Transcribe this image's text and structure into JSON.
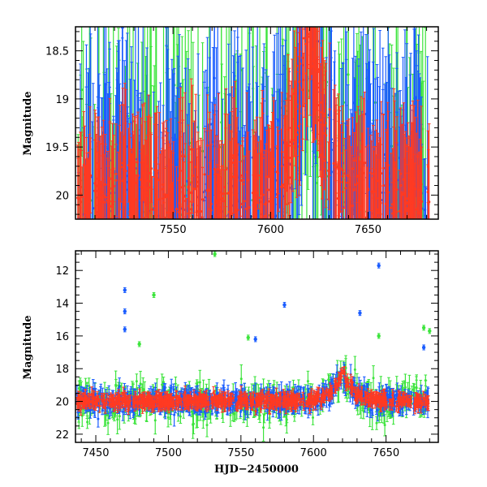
{
  "figure": {
    "series_colors": {
      "red": "#ff3a22",
      "blue": "#1a5cff",
      "green": "#3ce43c"
    }
  },
  "chart_data": [
    {
      "type": "scatter",
      "panel": "top",
      "ylabel": "Magnitude",
      "xlabel": "",
      "xlim": [
        7500,
        7686
      ],
      "ylim": [
        20.25,
        18.25
      ],
      "y_inverted": true,
      "x_ticks": [
        7550,
        7600,
        7650
      ],
      "y_ticks": [
        18.5,
        19,
        19.5,
        20
      ],
      "x_tick_labels": [
        "7550",
        "7600",
        "7650"
      ],
      "y_tick_labels": [
        "18.5",
        "19",
        "19.5",
        "20"
      ],
      "grid": false,
      "legend": "none",
      "series": [
        {
          "color_key": "blue",
          "description_points": [
            [
              7620,
              18.3
            ],
            [
              7612,
              18.7
            ],
            [
              7628,
              18.7
            ],
            [
              7605,
              19.2
            ],
            [
              7635,
              19.2
            ]
          ]
        },
        {
          "color_key": "green",
          "description_points": [
            [
              7622,
              18.35
            ],
            [
              7610,
              18.9
            ],
            [
              7632,
              18.9
            ]
          ]
        },
        {
          "color_key": "red",
          "description_points": [
            [
              7600,
              19.6
            ],
            [
              7610,
              19.0
            ],
            [
              7620,
              18.35
            ],
            [
              7630,
              19.0
            ],
            [
              7640,
              19.6
            ],
            [
              7660,
              19.8
            ]
          ]
        }
      ]
    },
    {
      "type": "scatter",
      "panel": "bottom",
      "ylabel": "Magnitude",
      "xlabel": "HJD−2450000",
      "xlim": [
        7436,
        7686
      ],
      "ylim": [
        22.5,
        10.8
      ],
      "y_inverted": true,
      "x_ticks": [
        7450,
        7500,
        7550,
        7600,
        7650
      ],
      "y_ticks": [
        12,
        14,
        16,
        18,
        20,
        22
      ],
      "x_tick_labels": [
        "7450",
        "7500",
        "7550",
        "7600",
        "7650"
      ],
      "y_tick_labels": [
        "12",
        "14",
        "16",
        "18",
        "20",
        "22"
      ],
      "grid": false,
      "legend": "none",
      "baseline_magnitude": 20.0,
      "peak": {
        "x": 7620,
        "y": 18.35
      },
      "outliers": [
        {
          "x": 7532,
          "y": 11.0,
          "color_key": "green"
        },
        {
          "x": 7645,
          "y": 11.7,
          "color_key": "blue"
        },
        {
          "x": 7470,
          "y": 13.2,
          "color_key": "blue"
        },
        {
          "x": 7490,
          "y": 13.5,
          "color_key": "green"
        },
        {
          "x": 7470,
          "y": 14.5,
          "color_key": "blue"
        },
        {
          "x": 7580,
          "y": 14.1,
          "color_key": "blue"
        },
        {
          "x": 7632,
          "y": 14.6,
          "color_key": "blue"
        },
        {
          "x": 7470,
          "y": 15.6,
          "color_key": "blue"
        },
        {
          "x": 7676,
          "y": 15.5,
          "color_key": "green"
        },
        {
          "x": 7680,
          "y": 15.7,
          "color_key": "green"
        },
        {
          "x": 7645,
          "y": 16.0,
          "color_key": "green"
        },
        {
          "x": 7676,
          "y": 16.7,
          "color_key": "blue"
        },
        {
          "x": 7560,
          "y": 16.2,
          "color_key": "blue"
        },
        {
          "x": 7555,
          "y": 16.1,
          "color_key": "green"
        },
        {
          "x": 7480,
          "y": 16.5,
          "color_key": "green"
        }
      ],
      "series": [
        {
          "color_key": "blue"
        },
        {
          "color_key": "green"
        },
        {
          "color_key": "red"
        }
      ]
    }
  ]
}
